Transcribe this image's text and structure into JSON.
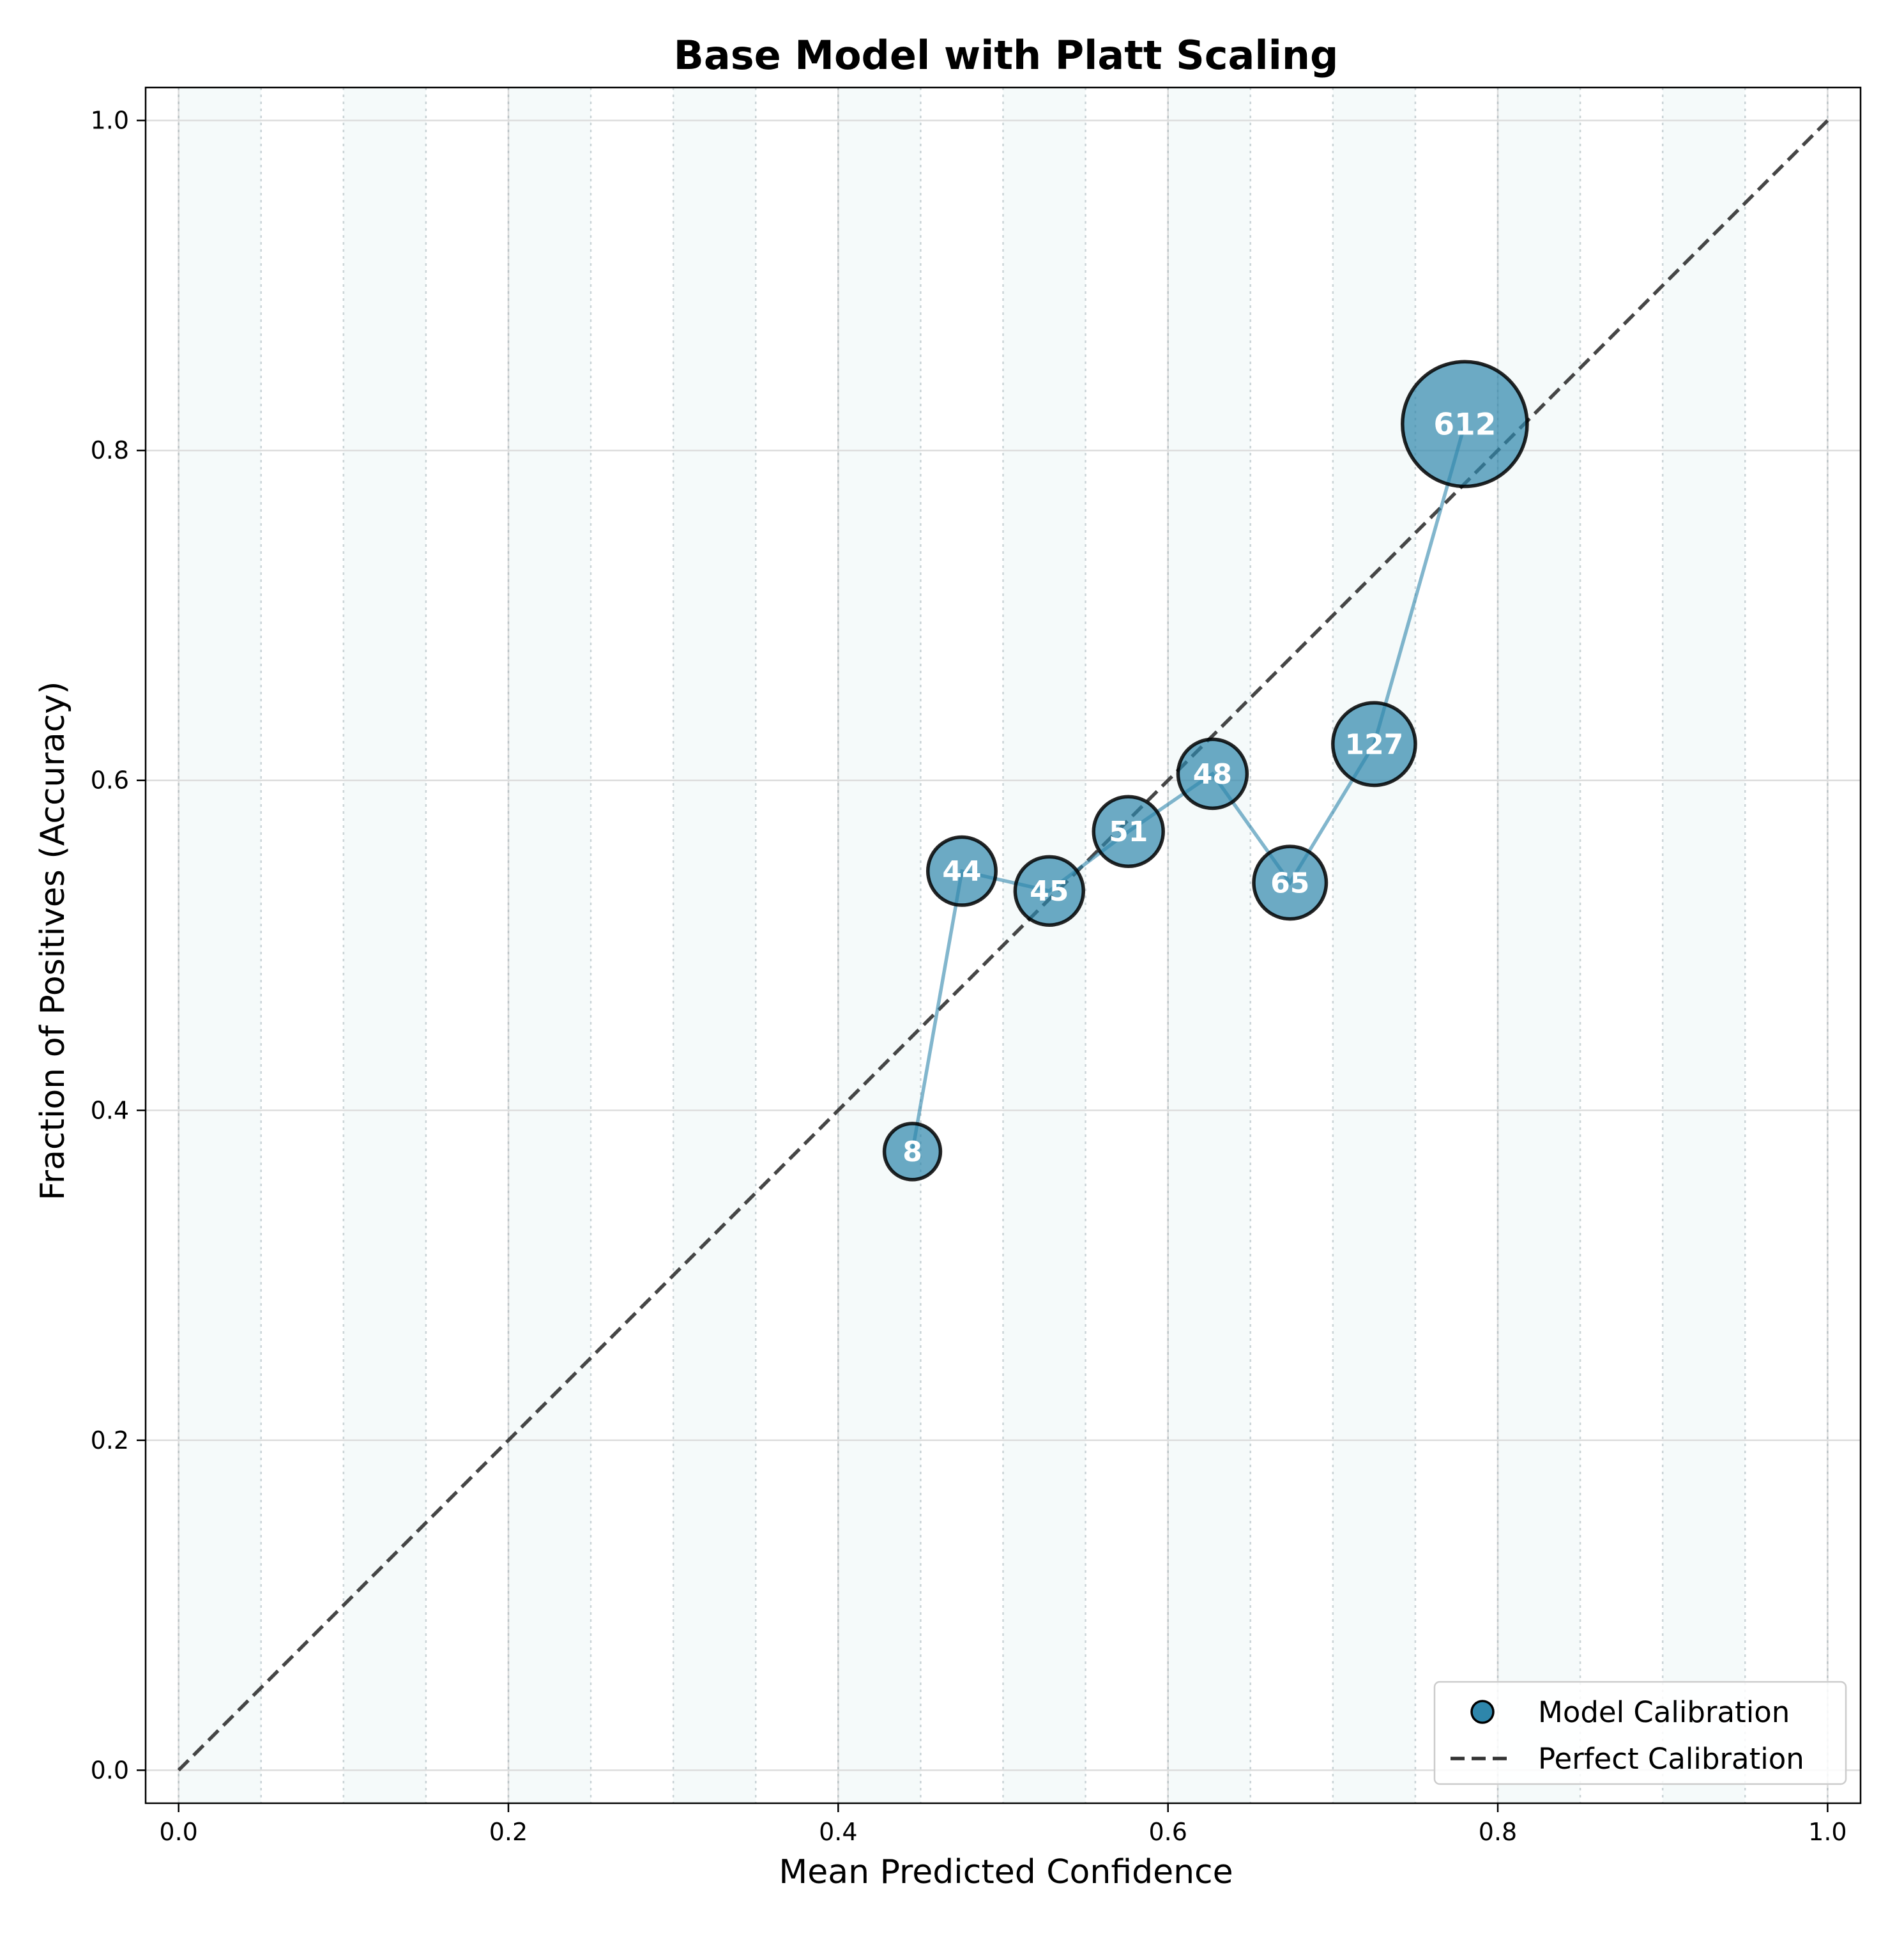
{
  "chart_data": {
    "type": "scatter",
    "title": "Base Model with Platt Scaling",
    "xlabel": "Mean Predicted Confidence",
    "ylabel": "Fraction of Positives (Accuracy)",
    "xlim": [
      -0.02,
      1.02
    ],
    "ylim": [
      -0.02,
      1.02
    ],
    "xticks": [
      0.0,
      0.2,
      0.4,
      0.6,
      0.8,
      1.0
    ],
    "yticks": [
      0.0,
      0.2,
      0.4,
      0.6,
      0.8,
      1.0
    ],
    "xtick_labels": [
      "0.0",
      "0.2",
      "0.4",
      "0.6",
      "0.8",
      "1.0"
    ],
    "ytick_labels": [
      "0.0",
      "0.2",
      "0.4",
      "0.6",
      "0.8",
      "1.0"
    ],
    "grid": true,
    "bins": [
      0.0,
      0.05,
      0.1,
      0.15,
      0.2,
      0.25,
      0.3,
      0.35,
      0.4,
      0.45,
      0.5,
      0.55,
      0.6,
      0.65,
      0.7,
      0.75,
      0.8,
      0.85,
      0.9,
      0.95,
      1.0
    ],
    "series": [
      {
        "name": "Model Calibration",
        "color": "#2e86ab",
        "x": [
          0.445,
          0.475,
          0.528,
          0.576,
          0.627,
          0.674,
          0.725,
          0.78
        ],
        "y": [
          0.375,
          0.545,
          0.533,
          0.569,
          0.604,
          0.538,
          0.622,
          0.816
        ],
        "counts": [
          "8",
          "44",
          "45",
          "51",
          "48",
          "65",
          "127",
          "612"
        ]
      }
    ],
    "reference_line": {
      "name": "Perfect Calibration",
      "color": "#333333",
      "x": [
        0.0,
        1.0
      ],
      "y": [
        0.0,
        1.0
      ]
    },
    "legend": {
      "placement": "lower-right",
      "entries": [
        "Model Calibration",
        "Perfect Calibration"
      ]
    }
  }
}
